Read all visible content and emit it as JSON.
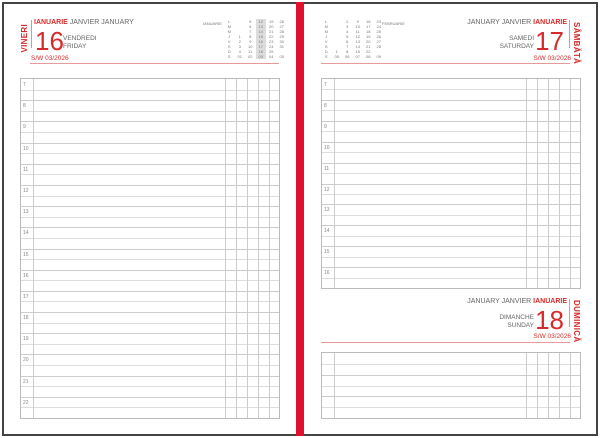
{
  "left": {
    "weekday_vertical": "VINERI",
    "month_ro": "IANUARIE",
    "month_other": "JANVIER JANUARY",
    "day": "16",
    "weekday_fr": "VENDREDI",
    "weekday_en": "FRIDAY",
    "week": "S/W 03/2026",
    "hours": [
      "7",
      "8",
      "9",
      "10",
      "11",
      "12",
      "13",
      "14",
      "15",
      "16",
      "17",
      "18",
      "19",
      "20",
      "21",
      "22"
    ]
  },
  "right": {
    "weekday_vertical": "SÂMBĂTĂ",
    "month_ro": "IANUARIE",
    "month_other": "JANUARY JANVIER",
    "day": "17",
    "weekday_fr": "SAMEDI",
    "weekday_en": "SATURDAY",
    "week": "S/W 03/2026",
    "hours": [
      "7",
      "8",
      "9",
      "10",
      "11",
      "12",
      "13",
      "14",
      "15",
      "16"
    ]
  },
  "sunday": {
    "weekday_vertical": "DUMINICĂ",
    "month_ro": "IANUARIE",
    "month_other": "JANUARY JANVIER",
    "day": "18",
    "weekday_fr": "DIMANCHE",
    "weekday_en": "SUNDAY",
    "week": "S/W 03/2026"
  },
  "mini_jan": {
    "title": "IANUARIE",
    "rows": [
      [
        "L",
        "",
        "5",
        "12",
        "19",
        "26"
      ],
      [
        "M",
        "",
        "6",
        "13",
        "20",
        "27"
      ],
      [
        "M",
        "",
        "7",
        "14",
        "21",
        "28"
      ],
      [
        "J",
        "1",
        "8",
        "15",
        "22",
        "29"
      ],
      [
        "V",
        "2",
        "9",
        "16",
        "23",
        "30"
      ],
      [
        "S",
        "3",
        "10",
        "17",
        "24",
        "31"
      ],
      [
        "D",
        "4",
        "11",
        "18",
        "25",
        ""
      ],
      [
        "S",
        "01",
        "02",
        "03",
        "04",
        "05"
      ]
    ],
    "highlight_col": 3
  },
  "mini_feb": {
    "title": "FEBRUARIE",
    "rows": [
      [
        "L",
        "",
        "2",
        "9",
        "16",
        "23"
      ],
      [
        "M",
        "",
        "3",
        "10",
        "17",
        "24"
      ],
      [
        "M",
        "",
        "4",
        "11",
        "18",
        "25"
      ],
      [
        "J",
        "",
        "5",
        "12",
        "19",
        "26"
      ],
      [
        "V",
        "",
        "6",
        "13",
        "20",
        "27"
      ],
      [
        "S",
        "",
        "7",
        "14",
        "21",
        "28"
      ],
      [
        "D",
        "1",
        "8",
        "15",
        "22",
        ""
      ],
      [
        "S",
        "05",
        "06",
        "07",
        "08",
        "09"
      ]
    ]
  },
  "colors": {
    "accent": "#d62b2b",
    "spine": "#e0102e"
  }
}
